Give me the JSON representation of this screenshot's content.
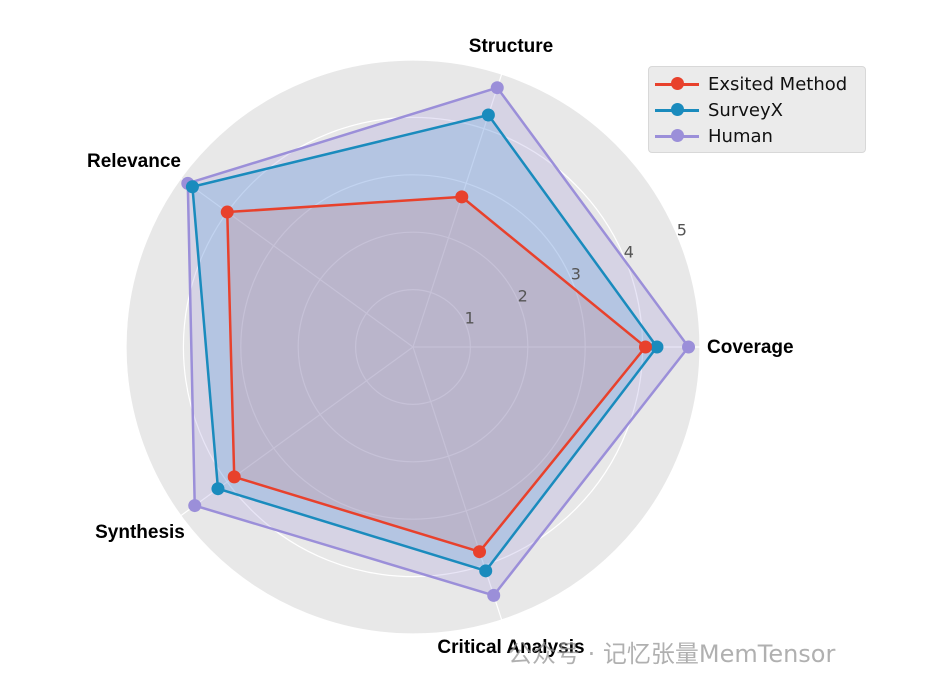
{
  "chart_data": {
    "type": "radar",
    "title": "",
    "categories": [
      "Coverage",
      "Structure",
      "Relevance",
      "Synthesis",
      "Critical Analysis"
    ],
    "radial_ticks": [
      "1",
      "2",
      "3",
      "4",
      "5"
    ],
    "rlim": [
      0,
      5
    ],
    "grid": true,
    "legend_position": "upper right",
    "series": [
      {
        "name": "Exsited Method",
        "color": "#e8412c",
        "fill": "rgba(232,65,44,0.12)",
        "values": [
          4.05,
          2.75,
          4.0,
          3.85,
          3.75
        ]
      },
      {
        "name": "SurveyX",
        "color": "#1a8bbd",
        "fill": "rgba(60,150,220,0.22)",
        "values": [
          4.25,
          4.25,
          4.75,
          4.2,
          4.1
        ]
      },
      {
        "name": "Human",
        "color": "#9b8fd9",
        "fill": "rgba(150,135,215,0.22)",
        "values": [
          4.8,
          4.75,
          4.85,
          4.7,
          4.55
        ]
      }
    ]
  },
  "legend": {
    "items": [
      {
        "label": "Exsited Method",
        "color": "#e8412c"
      },
      {
        "label": "SurveyX",
        "color": "#1a8bbd"
      },
      {
        "label": "Human",
        "color": "#9b8fd9"
      }
    ]
  },
  "watermark": "公众号 · 记忆张量MemTensor"
}
